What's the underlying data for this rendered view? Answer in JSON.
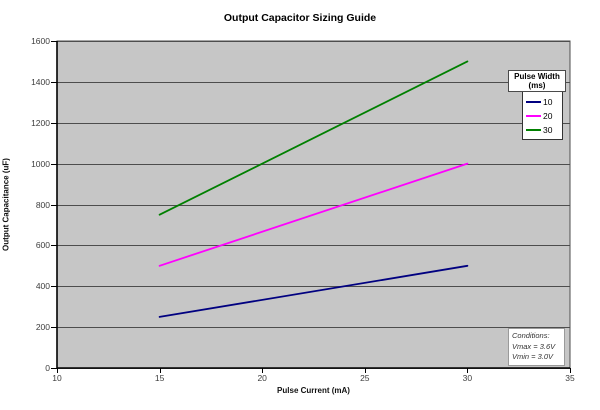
{
  "chart_data": {
    "type": "line",
    "title": "Output Capacitor Sizing Guide",
    "xlabel": "Pulse Current (mA)",
    "ylabel": "Output Capacitance (uF)",
    "xlim": [
      10,
      35
    ],
    "ylim": [
      0,
      1600
    ],
    "x_ticks": [
      10,
      15,
      20,
      25,
      30,
      35
    ],
    "y_ticks": [
      0,
      200,
      400,
      600,
      800,
      1000,
      1200,
      1400,
      1600
    ],
    "grid": "horizontal-only",
    "plot_bg_color": "#c6c6c6",
    "gridline_color": "#4d4d4d",
    "series": [
      {
        "name": "10",
        "color": "#000080",
        "x": [
          15,
          30
        ],
        "values": [
          250,
          500
        ]
      },
      {
        "name": "20",
        "color": "#ff00ff",
        "x": [
          15,
          30
        ],
        "values": [
          500,
          1000
        ]
      },
      {
        "name": "30",
        "color": "#008000",
        "x": [
          15,
          30
        ],
        "values": [
          750,
          1500
        ]
      }
    ],
    "legend": {
      "title_line1": "Pulse Width",
      "title_line2": "(ms)",
      "entries": [
        "10",
        "20",
        "30"
      ],
      "position": "right-top-inside"
    },
    "annotation": {
      "lines": [
        "Conditions:",
        "Vmax = 3.6V",
        "Vmin = 3.0V"
      ],
      "position": "right-bottom-inside"
    }
  }
}
